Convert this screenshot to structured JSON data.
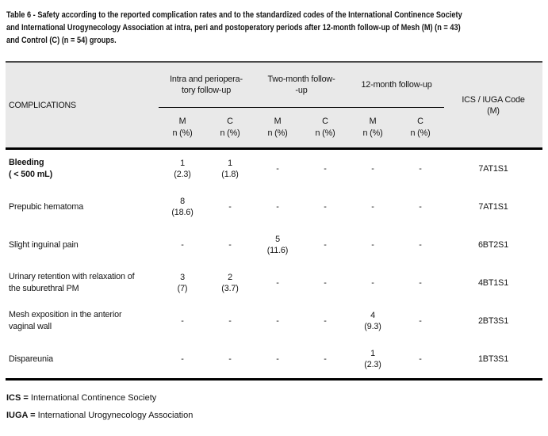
{
  "caption": "Table 6 - Safety according to the reported complication rates and to the standardized codes of the International Continence Society\nand International Urogynecology Association at intra, peri and postoperatory periods after 12-month follow-up of Mesh (M) (n = 43)\nand Control (C) (n = 54) groups.",
  "colors": {
    "header_bg": "#e9e9e9",
    "rule": "#000000",
    "text": "#141414"
  },
  "table": {
    "row_header": "COMPLICATIONS",
    "groups": [
      {
        "label": "Intra and periopera-\ntory follow-up"
      },
      {
        "label": "Two-month follow-\n-up"
      },
      {
        "label": "12-month follow-up"
      }
    ],
    "code_header": "ICS / IUGA Code\n(M)",
    "subheaders": [
      "M\nn (%)",
      "C\nn (%)",
      "M\nn (%)",
      "C\nn (%)",
      "M\nn (%)",
      "C\nn (%)"
    ],
    "rows": [
      {
        "complication": "Bleeding\n( < 500 mL)",
        "values": [
          "1\n(2.3)",
          "1\n(1.8)",
          "-",
          "-",
          "-",
          "-"
        ],
        "code": "7AT1S1"
      },
      {
        "complication": "Prepubic hematoma",
        "values": [
          "8\n(18.6)",
          "-",
          "-",
          "-",
          "-",
          "-"
        ],
        "code": "7AT1S1"
      },
      {
        "complication": "Slight inguinal pain",
        "values": [
          "-",
          "-",
          "5\n(11.6)",
          "-",
          "-",
          "-"
        ],
        "code": "6BT2S1"
      },
      {
        "complication": "Urinary retention with relaxation of\nthe suburethral PM",
        "values": [
          "3\n(7)",
          "2\n(3.7)",
          "-",
          "-",
          "-",
          "-"
        ],
        "code": "4BT1S1"
      },
      {
        "complication": "Mesh exposition in the anterior\nvaginal wall",
        "values": [
          "-",
          "-",
          "-",
          "-",
          "4\n(9.3)",
          "-"
        ],
        "code": "2BT3S1"
      },
      {
        "complication": "Dispareunia",
        "values": [
          "-",
          "-",
          "-",
          "-",
          "1\n(2.3)",
          "-"
        ],
        "code": "1BT3S1"
      }
    ]
  },
  "footnotes": [
    {
      "abbr": "ICS =",
      "text": "International Continence Society"
    },
    {
      "abbr": "IUGA =",
      "text": "International Urogynecology Association"
    }
  ]
}
